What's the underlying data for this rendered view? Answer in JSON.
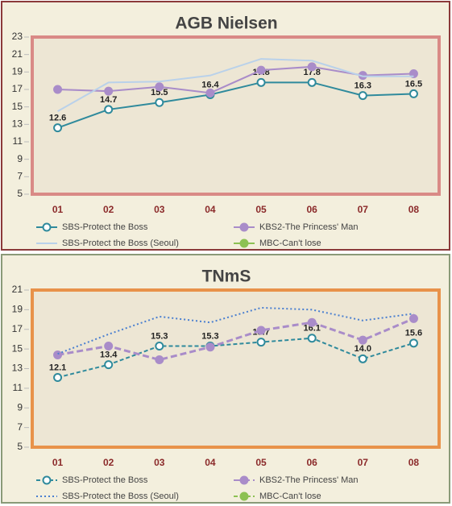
{
  "chart_data": [
    {
      "type": "line",
      "title": "AGB Nielsen",
      "categories": [
        "01",
        "02",
        "03",
        "04",
        "05",
        "06",
        "07",
        "08"
      ],
      "ylim": [
        5,
        23
      ],
      "yticks": [
        5,
        7,
        9,
        11,
        13,
        15,
        17,
        19,
        21,
        23
      ],
      "series": [
        {
          "name": "SBS-Protect the Boss",
          "color": "#2f8a9c",
          "marker": "hollow",
          "values": [
            12.6,
            14.7,
            15.5,
            16.4,
            17.8,
            17.8,
            16.3,
            16.5
          ]
        },
        {
          "name": "KBS2-The Princess' Man",
          "color": "#a98cc9",
          "marker": "filled",
          "values": [
            17.0,
            16.8,
            17.3,
            16.6,
            19.2,
            19.6,
            18.6,
            18.8
          ]
        },
        {
          "name": "SBS-Protect the Boss (Seoul)",
          "color": "#b9d1ea",
          "values": [
            14.5,
            17.8,
            17.9,
            18.6,
            20.5,
            20.3,
            18.5,
            18.5
          ]
        },
        {
          "name": "MBC-Can't lose",
          "color": "#8cc152",
          "marker": "filled",
          "values": [
            null,
            null,
            null,
            null,
            null,
            null,
            null,
            null
          ]
        }
      ]
    },
    {
      "type": "line",
      "title": "TNmS",
      "categories": [
        "01",
        "02",
        "03",
        "04",
        "05",
        "06",
        "07",
        "08"
      ],
      "ylim": [
        5,
        21
      ],
      "yticks": [
        5,
        7,
        9,
        11,
        13,
        15,
        17,
        19,
        21
      ],
      "series": [
        {
          "name": "SBS-Protect the Boss",
          "color": "#2f8a9c",
          "marker": "hollow",
          "dash": "5,3",
          "values": [
            12.1,
            13.4,
            15.3,
            15.3,
            15.7,
            16.1,
            14.0,
            15.6
          ],
          "value_labels": [
            "12.1",
            "13.4",
            "15.3",
            "15.3",
            "15.7",
            "16.1",
            "14.0",
            "15.6"
          ]
        },
        {
          "name": "KBS2-The Princess' Man",
          "color": "#a98cc9",
          "marker": "filled",
          "dash": "8,4",
          "values": [
            14.4,
            15.3,
            13.9,
            15.2,
            16.9,
            17.7,
            15.9,
            18.1
          ]
        },
        {
          "name": "SBS-Protect the Boss (Seoul)",
          "color": "#4a7fd0",
          "dash": "2,3",
          "values": [
            14.5,
            16.5,
            18.3,
            17.7,
            19.2,
            19.0,
            17.9,
            18.6
          ]
        },
        {
          "name": "MBC-Can't lose",
          "color": "#8cc152",
          "marker": "filled",
          "dash": "5,3",
          "values": [
            null,
            null,
            null,
            null,
            null,
            null,
            null,
            null
          ]
        }
      ]
    }
  ]
}
